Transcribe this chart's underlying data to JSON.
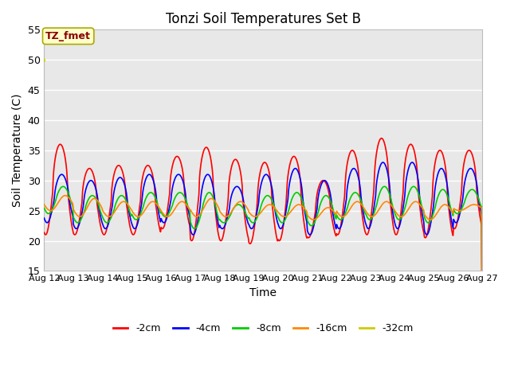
{
  "title": "Tonzi Soil Temperatures Set B",
  "xlabel": "Time",
  "ylabel": "Soil Temperature (C)",
  "ylim": [
    15,
    55
  ],
  "yticks": [
    15,
    20,
    25,
    30,
    35,
    40,
    45,
    50,
    55
  ],
  "n_days": 15,
  "x_tick_labels": [
    "Aug 12",
    "Aug 13",
    "Aug 14",
    "Aug 15",
    "Aug 16",
    "Aug 17",
    "Aug 18",
    "Aug 19",
    "Aug 20",
    "Aug 21",
    "Aug 22",
    "Aug 23",
    "Aug 24",
    "Aug 25",
    "Aug 26",
    "Aug 27"
  ],
  "series": {
    "-2cm": {
      "color": "#ff0000",
      "lw": 1.2
    },
    "-4cm": {
      "color": "#0000ff",
      "lw": 1.2
    },
    "-8cm": {
      "color": "#00cc00",
      "lw": 1.2
    },
    "-16cm": {
      "color": "#ff8800",
      "lw": 1.2
    },
    "-32cm": {
      "color": "#cccc00",
      "lw": 1.2
    }
  },
  "annotation": {
    "text": "TZ_fmet",
    "facecolor": "#ffffcc",
    "edgecolor": "#aaaa00",
    "textcolor": "#880000",
    "fontsize": 9,
    "fontweight": "bold"
  },
  "plot_bg_color": "#e8e8e8",
  "grid_color": "#ffffff",
  "legend_labels": [
    "-2cm",
    "-4cm",
    "-8cm",
    "-16cm",
    "-32cm"
  ],
  "legend_colors": [
    "#ff0000",
    "#0000ff",
    "#00cc00",
    "#ff8800",
    "#cccc00"
  ]
}
